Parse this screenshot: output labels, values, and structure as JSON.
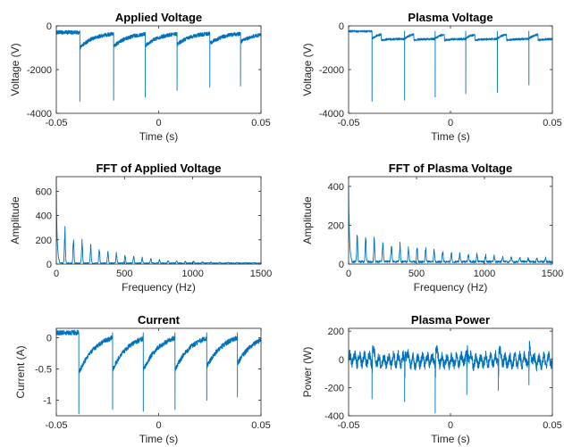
{
  "colors": {
    "line": "#0072BD",
    "axis": "#262626"
  },
  "chart_data": [
    {
      "type": "line",
      "title": "Applied Voltage",
      "xlabel": "Time (s)",
      "ylabel": "Voltage (V)",
      "xlim": [
        -0.05,
        0.05
      ],
      "ylim": [
        -4000,
        0
      ],
      "xticks": [
        -0.05,
        0,
        0.05
      ],
      "xtick_labels": [
        "-0.05",
        "0",
        "0.05"
      ],
      "yticks": [
        0,
        -2000,
        -4000
      ],
      "ytick_labels": [
        "0",
        "-2000",
        "-4000"
      ],
      "grid": false,
      "series": [
        {
          "signal": "pulse-train",
          "baseline": -300,
          "noise": 90,
          "ripple": 0,
          "pulses": [
            {
              "t": -0.0385,
              "peak": -3450,
              "depth": -700,
              "decay": 0.007
            },
            {
              "t": -0.022,
              "peak": -3400,
              "depth": -650,
              "decay": 0.007
            },
            {
              "t": -0.0065,
              "peak": -3250,
              "depth": -600,
              "decay": 0.007
            },
            {
              "t": 0.009,
              "peak": -2950,
              "depth": -550,
              "decay": 0.007
            },
            {
              "t": 0.025,
              "peak": -2800,
              "depth": -500,
              "decay": 0.007
            },
            {
              "t": 0.04,
              "peak": -2750,
              "depth": -450,
              "decay": 0.007
            }
          ]
        }
      ]
    },
    {
      "type": "line",
      "title": "Plasma Voltage",
      "xlabel": "Time (s)",
      "ylabel": "Voltage (V)",
      "xlim": [
        -0.05,
        0.05
      ],
      "ylim": [
        -4000,
        0
      ],
      "xticks": [
        -0.05,
        0,
        0.05
      ],
      "xtick_labels": [
        "-0.05",
        "0",
        "0.05"
      ],
      "yticks": [
        0,
        -2000,
        -4000
      ],
      "ytick_labels": [
        "0",
        "-2000",
        "-4000"
      ],
      "grid": false,
      "series": [
        {
          "signal": "pulse-train",
          "baseline": -250,
          "noise": 50,
          "ripple": 0,
          "step": -350,
          "pulses": [
            {
              "t": -0.0385,
              "peak": -3450,
              "depth": -250,
              "decay": 0.003
            },
            {
              "t": -0.0225,
              "peak": -3400,
              "depth": -250,
              "decay": 0.003
            },
            {
              "t": -0.0075,
              "peak": -3250,
              "depth": -250,
              "decay": 0.003
            },
            {
              "t": 0.0075,
              "peak": -3100,
              "depth": -250,
              "decay": 0.003
            },
            {
              "t": 0.023,
              "peak": -3050,
              "depth": -250,
              "decay": 0.003
            },
            {
              "t": 0.0385,
              "peak": -2700,
              "depth": -250,
              "decay": 0.003
            }
          ]
        }
      ]
    },
    {
      "type": "line",
      "title": "FFT of Applied Voltage",
      "xlabel": "Frequency (Hz)",
      "ylabel": "Amplitude",
      "xlim": [
        0,
        1500
      ],
      "ylim": [
        0,
        720
      ],
      "xticks": [
        0,
        500,
        1000,
        1500
      ],
      "xtick_labels": [
        "0",
        "500",
        "1000",
        "1500"
      ],
      "yticks": [
        0,
        200,
        400,
        600
      ],
      "ytick_labels": [
        "0",
        "200",
        "400",
        "600"
      ],
      "grid": false,
      "series": [
        {
          "signal": "spectrum",
          "dc": 700,
          "harmonic_spacing": 63,
          "peak": 340,
          "decay": 300,
          "floor": 8
        }
      ]
    },
    {
      "type": "line",
      "title": "FFT of Plasma Voltage",
      "xlabel": "Frequency (Hz)",
      "ylabel": "Amplitude",
      "xlim": [
        0,
        1500
      ],
      "ylim": [
        0,
        450
      ],
      "xticks": [
        0,
        500,
        1000,
        1500
      ],
      "xtick_labels": [
        "0",
        "500",
        "1000",
        "1500"
      ],
      "yticks": [
        0,
        200,
        400
      ],
      "ytick_labels": [
        "0",
        "200",
        "400"
      ],
      "grid": false,
      "series": [
        {
          "signal": "spectrum",
          "dc": 400,
          "harmonic_spacing": 63,
          "peak": 170,
          "decay": 700,
          "floor": 12
        }
      ]
    },
    {
      "type": "line",
      "title": "Current",
      "xlabel": "Time (s)",
      "ylabel": "Current (A)",
      "xlim": [
        -0.05,
        0.05
      ],
      "ylim": [
        -1.25,
        0.15
      ],
      "xticks": [
        -0.05,
        0,
        0.05
      ],
      "xtick_labels": [
        "-0.05",
        "0",
        "0.05"
      ],
      "yticks": [
        0,
        -0.5,
        -1
      ],
      "ytick_labels": [
        "0",
        "-0.5",
        "-1"
      ],
      "grid": false,
      "series": [
        {
          "signal": "pulse-train",
          "baseline": 0.08,
          "noise": 0.04,
          "ripple": 0,
          "pulses": [
            {
              "t": -0.039,
              "peak": -1.22,
              "depth": -0.65,
              "decay": 0.008
            },
            {
              "t": -0.0225,
              "peak": -1.15,
              "depth": -0.6,
              "decay": 0.008
            },
            {
              "t": -0.0075,
              "peak": -1.18,
              "depth": -0.6,
              "decay": 0.008
            },
            {
              "t": 0.008,
              "peak": -1.15,
              "depth": -0.6,
              "decay": 0.008
            },
            {
              "t": 0.0235,
              "peak": -1.0,
              "depth": -0.55,
              "decay": 0.008
            },
            {
              "t": 0.0385,
              "peak": -0.95,
              "depth": -0.5,
              "decay": 0.008
            }
          ]
        }
      ]
    },
    {
      "type": "line",
      "title": "Plasma Power",
      "xlabel": "Time (s)",
      "ylabel": "Power (W)",
      "xlim": [
        -0.05,
        0.05
      ],
      "ylim": [
        -400,
        220
      ],
      "xticks": [
        -0.05,
        0,
        0.05
      ],
      "xtick_labels": [
        "-0.05",
        "0",
        "0.05"
      ],
      "yticks": [
        200,
        0,
        -200,
        -400
      ],
      "ytick_labels": [
        "200",
        "0",
        "-200",
        "-400"
      ],
      "grid": false,
      "series": [
        {
          "signal": "pulse-train",
          "baseline": 0,
          "noise": 35,
          "ripple": 55,
          "rise": 180,
          "pulses": [
            {
              "t": -0.0385,
              "peak": -280,
              "depth": -80,
              "decay": 0.004
            },
            {
              "t": -0.0225,
              "peak": -300,
              "depth": -80,
              "decay": 0.004
            },
            {
              "t": -0.0075,
              "peak": -380,
              "depth": -80,
              "decay": 0.004
            },
            {
              "t": 0.008,
              "peak": -250,
              "depth": -80,
              "decay": 0.004
            },
            {
              "t": 0.0235,
              "peak": -220,
              "depth": -80,
              "decay": 0.004
            },
            {
              "t": 0.0385,
              "peak": -180,
              "depth": -80,
              "decay": 0.004
            }
          ]
        }
      ]
    }
  ]
}
